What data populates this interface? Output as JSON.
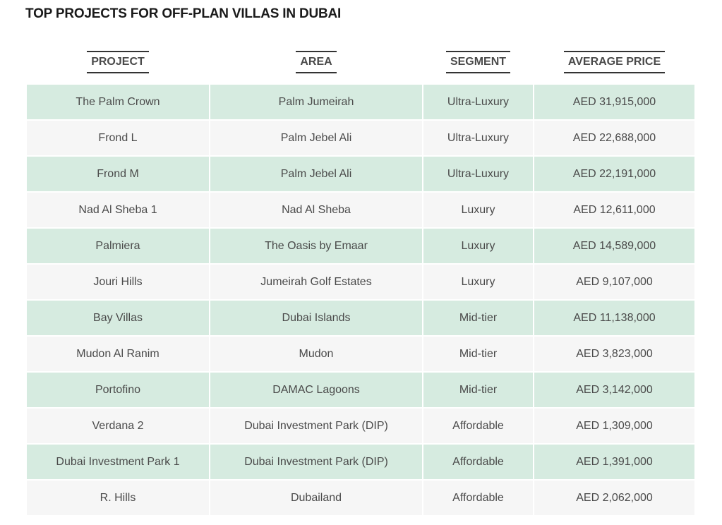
{
  "page": {
    "title": "TOP PROJECTS FOR OFF-PLAN VILLAS IN DUBAI"
  },
  "table": {
    "headers": [
      "PROJECT",
      "AREA",
      "SEGMENT",
      "AVERAGE PRICE"
    ],
    "rows": [
      [
        "The Palm Crown",
        "Palm Jumeirah",
        "Ultra-Luxury",
        "AED 31,915,000"
      ],
      [
        "Frond L",
        "Palm Jebel Ali",
        "Ultra-Luxury",
        "AED 22,688,000"
      ],
      [
        "Frond M",
        "Palm Jebel Ali",
        "Ultra-Luxury",
        "AED 22,191,000"
      ],
      [
        "Nad Al Sheba 1",
        "Nad Al Sheba",
        "Luxury",
        "AED 12,611,000"
      ],
      [
        "Palmiera",
        "The Oasis by Emaar",
        "Luxury",
        "AED 14,589,000"
      ],
      [
        "Jouri Hills",
        "Jumeirah Golf Estates",
        "Luxury",
        "AED 9,107,000"
      ],
      [
        "Bay Villas",
        "Dubai Islands",
        "Mid-tier",
        "AED 11,138,000"
      ],
      [
        "Mudon Al Ranim",
        "Mudon",
        "Mid-tier",
        "AED 3,823,000"
      ],
      [
        "Portofino",
        "DAMAC Lagoons",
        "Mid-tier",
        "AED 3,142,000"
      ],
      [
        "Verdana 2",
        "Dubai Investment Park (DIP)",
        "Affordable",
        "AED 1,309,000"
      ],
      [
        "Dubai Investment Park 1",
        "Dubai Investment Park (DIP)",
        "Affordable",
        "AED 1,391,000"
      ],
      [
        "R. Hills",
        "Dubailand",
        "Affordable",
        "AED 2,062,000"
      ]
    ]
  },
  "colors": {
    "row_alt_green": "#d6ebe0",
    "row_alt_grey": "#f6f6f6",
    "title": "#1a1a1a",
    "text": "#4a4a4a"
  }
}
